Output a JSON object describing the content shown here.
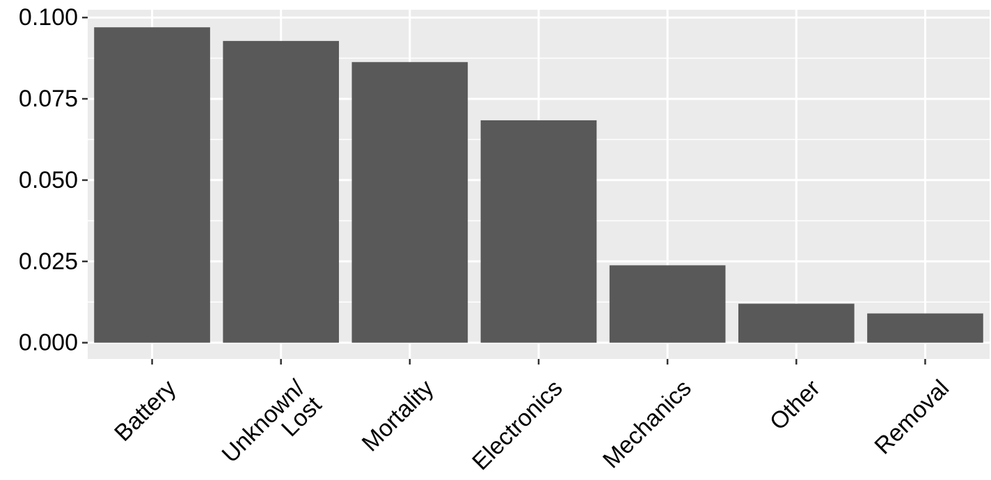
{
  "chart_data": {
    "type": "bar",
    "categories": [
      "Battery",
      "Unknown/\nLost",
      "Mortality",
      "Electronics",
      "Mechanics",
      "Other",
      "Removal"
    ],
    "values": [
      0.097,
      0.0928,
      0.0863,
      0.0684,
      0.0238,
      0.012,
      0.009
    ],
    "y_ticks": [
      "0.000",
      "0.025",
      "0.050",
      "0.075",
      "0.100"
    ],
    "ylim": [
      -0.005,
      0.1024
    ],
    "grid": true,
    "colors": {
      "bar": "#595959",
      "panel": "#ebebeb",
      "grid": "#ffffff",
      "axis": "#333333"
    }
  }
}
